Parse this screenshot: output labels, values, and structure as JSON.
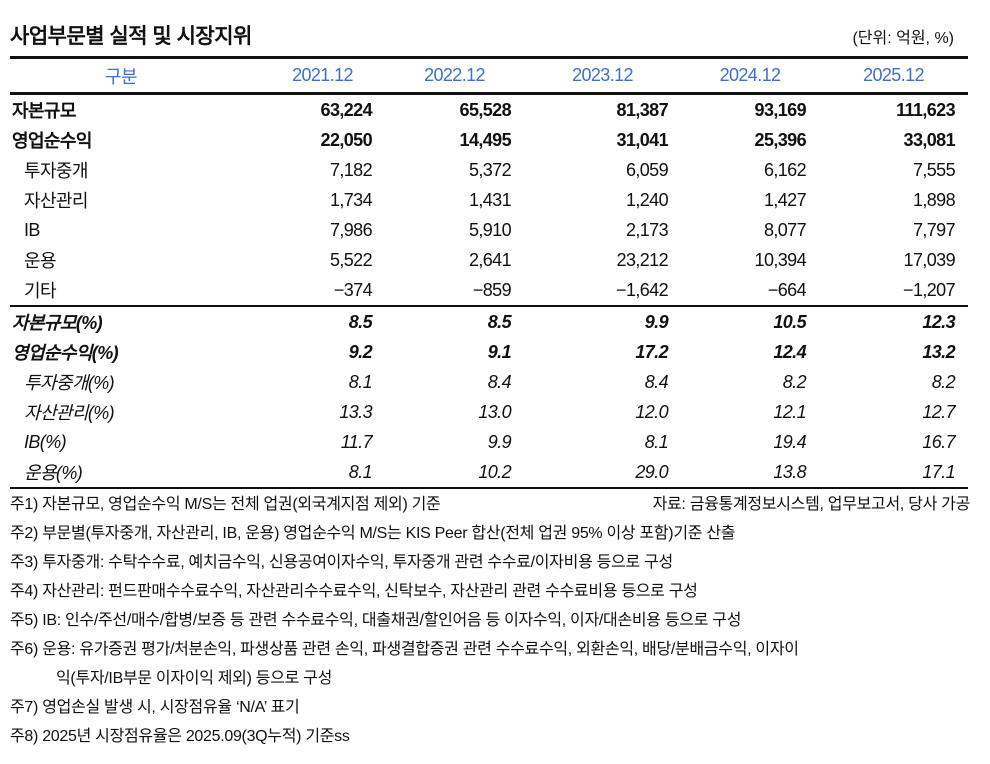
{
  "title": "사업부문별 실적 및 시장지위",
  "unit": "(단위: 억원, %)",
  "header": [
    "구분",
    "2021.12",
    "2022.12",
    "2023.12",
    "2024.12",
    "2025.12"
  ],
  "rows": [
    {
      "label": "자본규모",
      "values": [
        "63,224",
        "65,528",
        "81,387",
        "93,169",
        "111,623"
      ]
    },
    {
      "label": "영업순수익",
      "values": [
        "22,050",
        "14,495",
        "31,041",
        "25,396",
        "33,081"
      ]
    },
    {
      "label": "투자중개",
      "values": [
        "7,182",
        "5,372",
        "6,059",
        "6,162",
        "7,555"
      ]
    },
    {
      "label": "자산관리",
      "values": [
        "1,734",
        "1,431",
        "1,240",
        "1,427",
        "1,898"
      ]
    },
    {
      "label": "IB",
      "values": [
        "7,986",
        "5,910",
        "2,173",
        "8,077",
        "7,797"
      ]
    },
    {
      "label": "운용",
      "values": [
        "5,522",
        "2,641",
        "23,212",
        "10,394",
        "17,039"
      ]
    },
    {
      "label": "기타",
      "values": [
        "−374",
        "−859",
        "−1,642",
        "−664",
        "−1,207"
      ]
    },
    {
      "label": "자본규모(%)",
      "values": [
        "8.5",
        "8.5",
        "9.9",
        "10.5",
        "12.3"
      ]
    },
    {
      "label": "영업순수익(%)",
      "values": [
        "9.2",
        "9.1",
        "17.2",
        "12.4",
        "13.2"
      ]
    },
    {
      "label": "투자중개(%)",
      "values": [
        "8.1",
        "8.4",
        "8.4",
        "8.2",
        "8.2"
      ]
    },
    {
      "label": "자산관리(%)",
      "values": [
        "13.3",
        "13.0",
        "12.0",
        "12.1",
        "12.7"
      ]
    },
    {
      "label": "IB(%)",
      "values": [
        "11.7",
        "9.9",
        "8.1",
        "19.4",
        "16.7"
      ]
    },
    {
      "label": "운용(%)",
      "values": [
        "8.1",
        "10.2",
        "29.0",
        "13.8",
        "17.1"
      ]
    }
  ],
  "source": "자료: 금융통계정보시스템, 업무보고서, 당사 가공",
  "notes": [
    "주1) 자본규모, 영업순수익 M/S는 전체 업권(외국계지점 제외) 기준",
    "주2) 부문별(투자중개, 자산관리, IB, 운용) 영업순수익 M/S는 KIS Peer 합산(전체 업권 95% 이상 포함)기준 산출",
    "주3) 투자중개: 수탁수수료, 예치금수익, 신용공여이자수익, 투자중개 관련 수수료/이자비용 등으로 구성",
    "주4) 자산관리: 펀드판매수수료수익, 자산관리수수료수익, 신탁보수, 자산관리 관련 수수료비용  등으로 구성",
    "주5) IB: 인수/주선/매수/합병/보증 등 관련 수수료수익, 대출채권/할인어음 등 이자수익, 이자/대손비용 등으로 구성",
    "주6) 운용: 유가증권 평가/처분손익, 파생상품 관련 손익, 파생결합증권 관련 수수료수익, 외환손익, 배당/분배금수익, 이자이",
    "익(투자/IB부문 이자이익 제외) 등으로 구성",
    "주7) 영업손실 발생 시, 시장점유율 ‘N/A’ 표기",
    "주8) 2025년 시장점유율은 2025.09(3Q누적) 기준ss"
  ]
}
